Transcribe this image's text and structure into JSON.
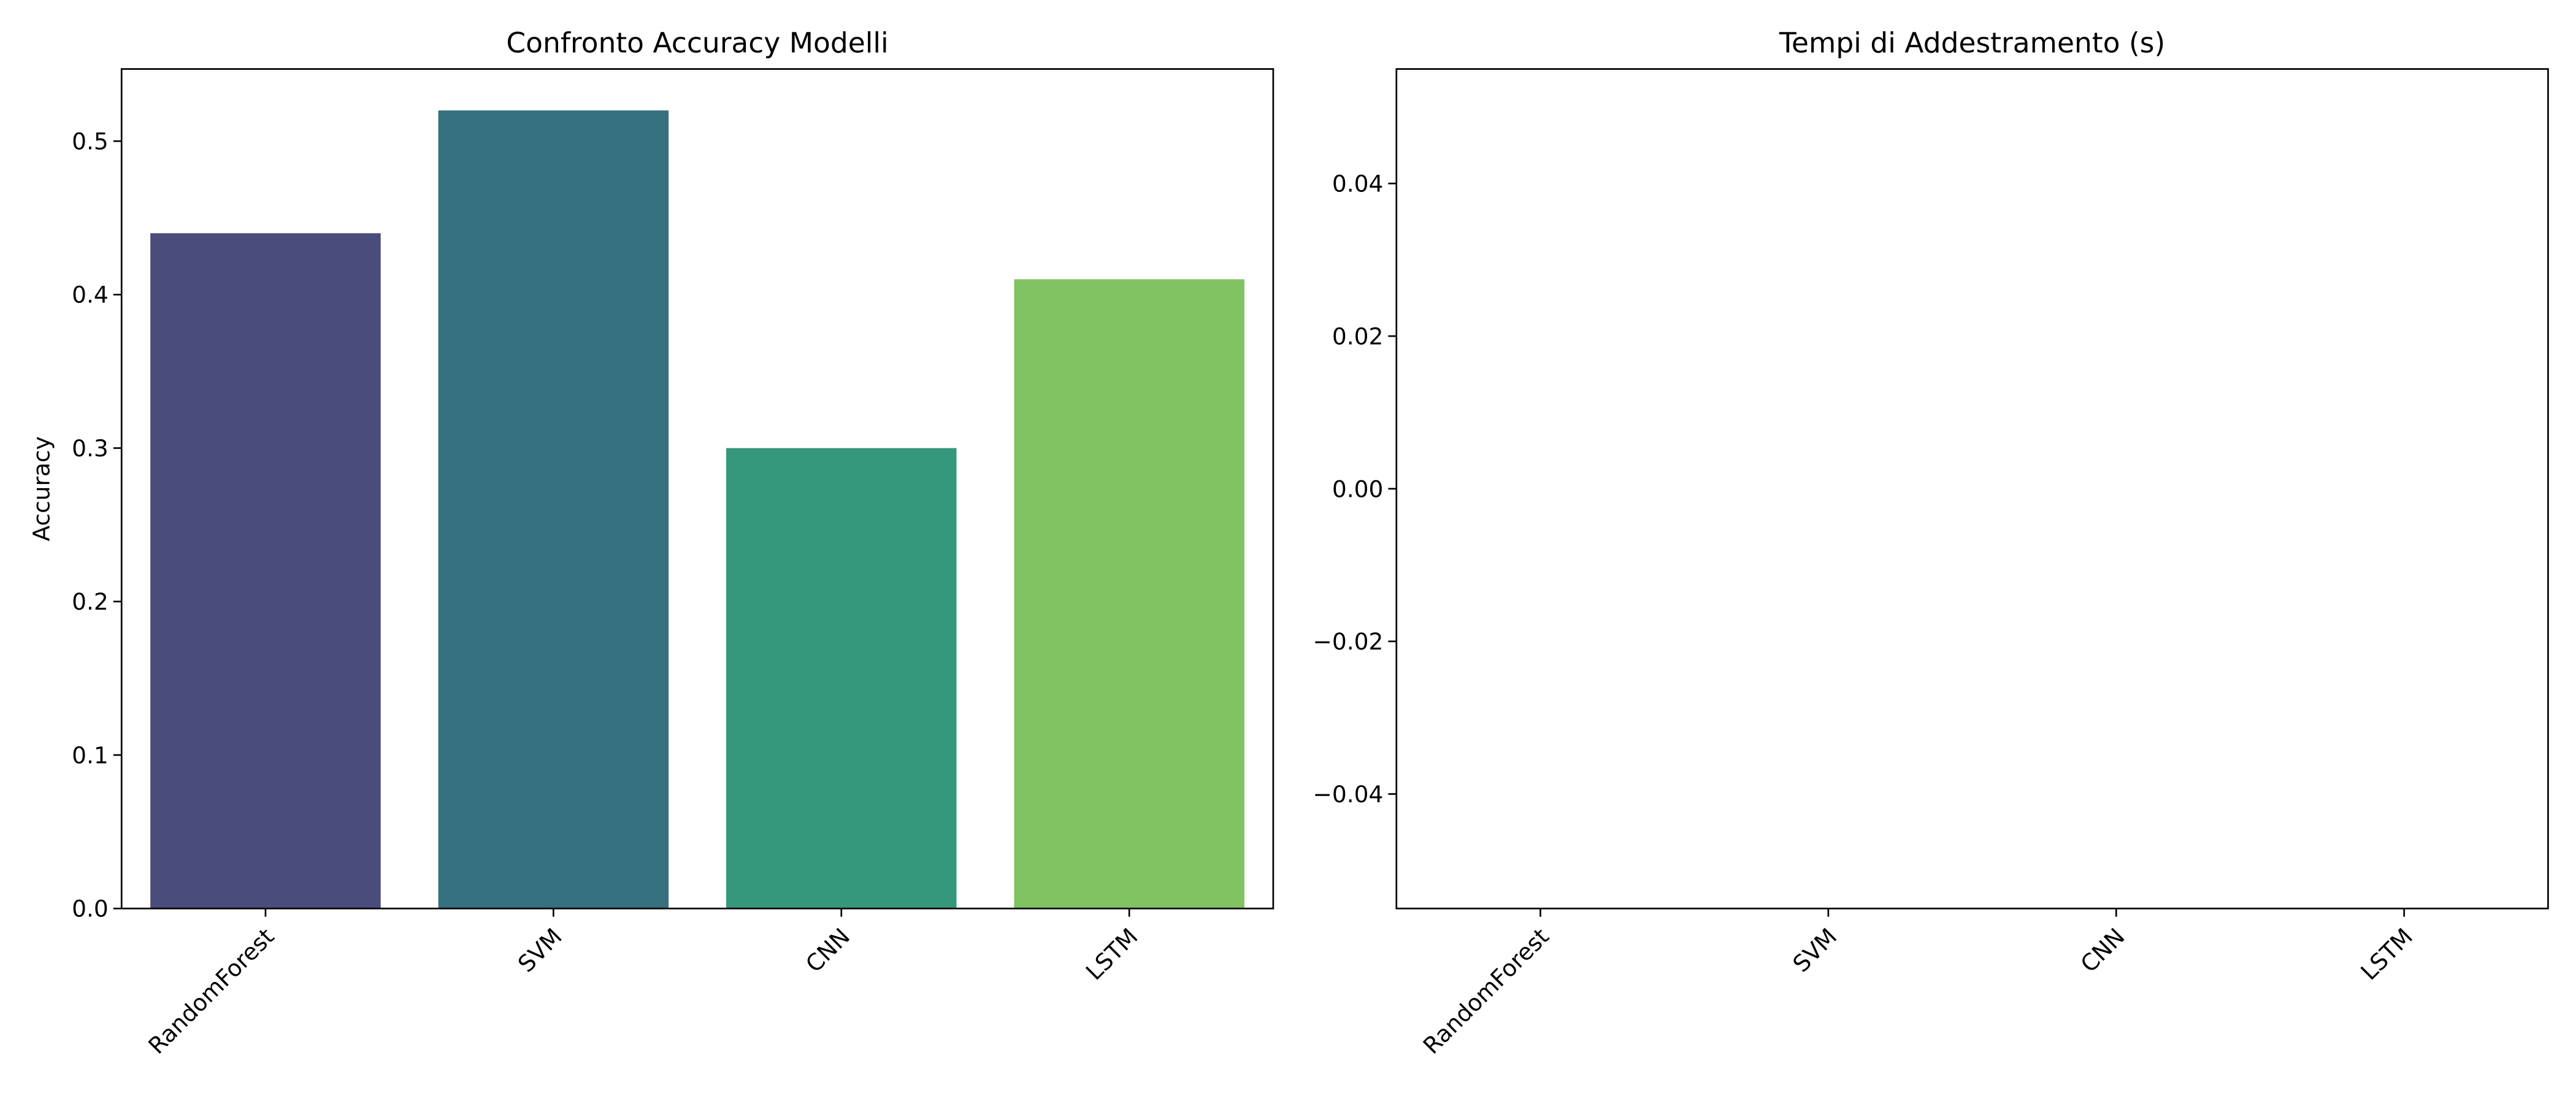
{
  "chart_data": [
    {
      "type": "bar",
      "title": "Confronto Accuracy Modelli",
      "y_label": "Accuracy",
      "categories": [
        "RandomForest",
        "SVM",
        "CNN",
        "LSTM"
      ],
      "values": [
        0.44,
        0.52,
        0.3,
        0.41
      ],
      "colors": [
        "#4a4c7c",
        "#36717f",
        "#35977c",
        "#81c262"
      ],
      "ylim": [
        0,
        0.547
      ],
      "yticks": [
        {
          "value": 0,
          "label": "0.0"
        },
        {
          "value": 0.1,
          "label": "0.1"
        },
        {
          "value": 0.2,
          "label": "0.2"
        },
        {
          "value": 0.3,
          "label": "0.3"
        },
        {
          "value": 0.4,
          "label": "0.4"
        },
        {
          "value": 0.5,
          "label": "0.5"
        }
      ],
      "grid": false
    },
    {
      "type": "bar",
      "title": "Tempi di Addestramento (s)",
      "categories": [
        "RandomForest",
        "SVM",
        "CNN",
        "LSTM"
      ],
      "values": [
        0,
        0,
        0,
        0
      ],
      "colors": [
        "#4a4c7c",
        "#36717f",
        "#35977c",
        "#81c262"
      ],
      "ylim": [
        -0.055,
        0.055
      ],
      "yticks": [
        {
          "value": -0.04,
          "label": "−0.04"
        },
        {
          "value": -0.02,
          "label": "−0.02"
        },
        {
          "value": 0,
          "label": "0.00"
        },
        {
          "value": 0.02,
          "label": "0.02"
        },
        {
          "value": 0.04,
          "label": "0.04"
        }
      ],
      "grid": false
    }
  ]
}
